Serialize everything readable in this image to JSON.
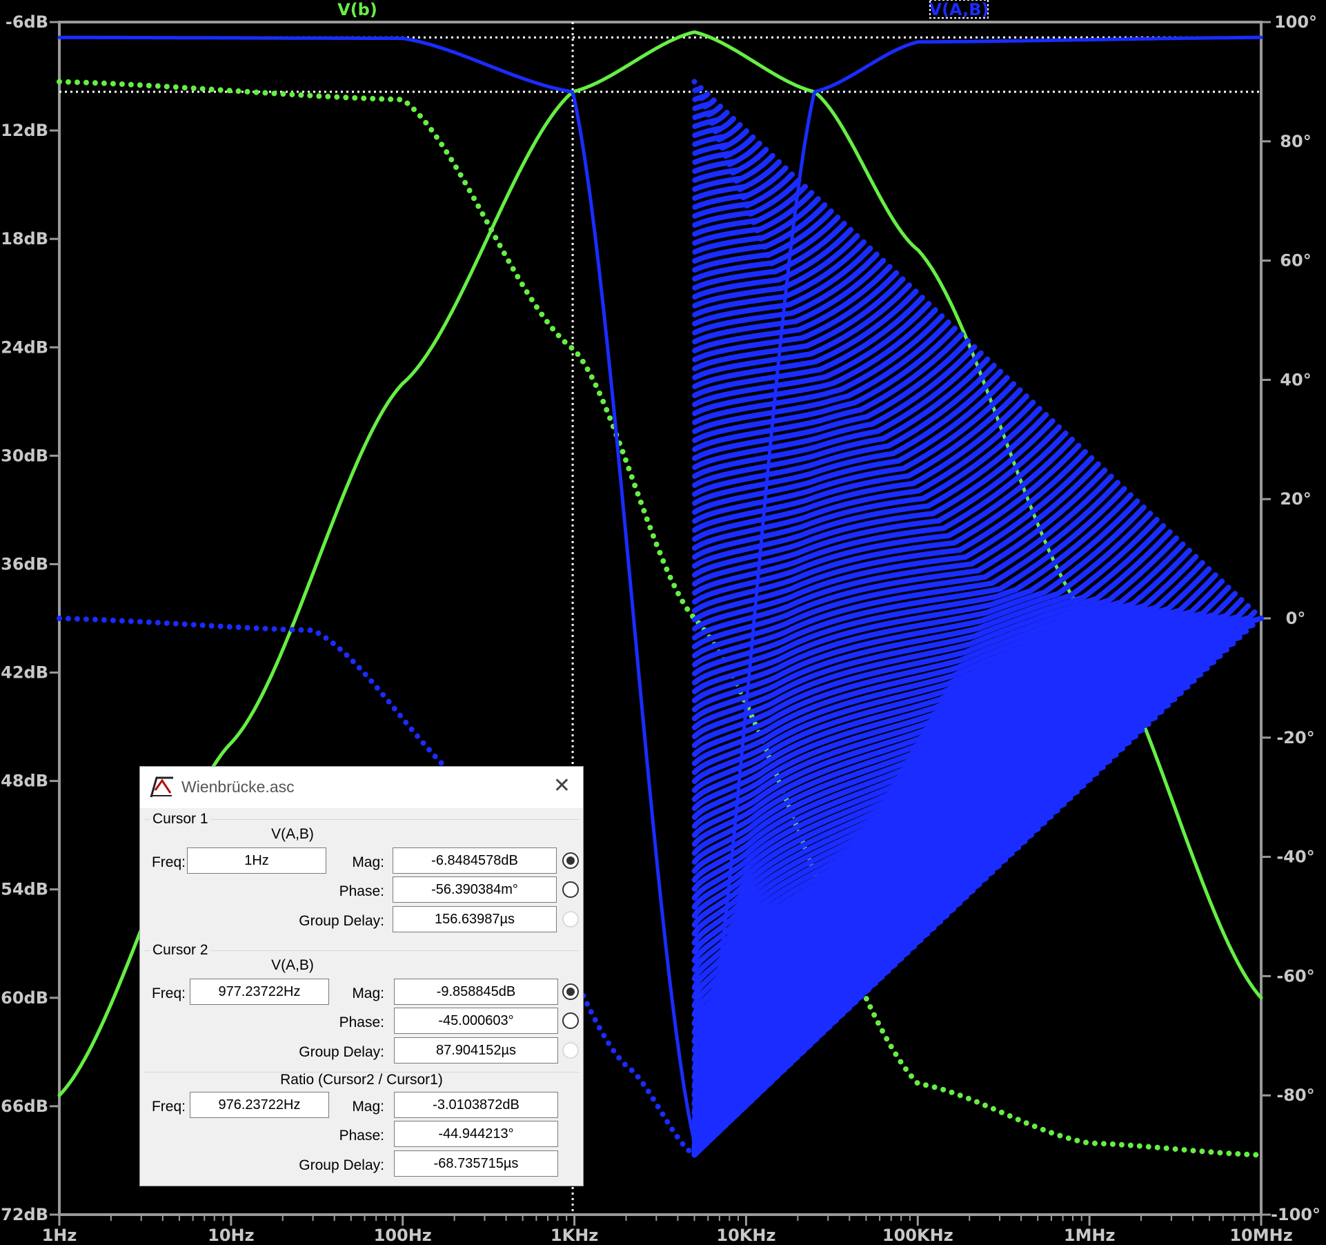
{
  "window_title": "Wienbrücke.asc",
  "legend": [
    {
      "label": "V(b)",
      "color": "#66ee44"
    },
    {
      "label": "V(A,B)",
      "color": "#1a2cff"
    }
  ],
  "chart_data": {
    "type": "line",
    "x_scale": "log",
    "xlim_hz": [
      1,
      10000000
    ],
    "x_ticks": [
      "1Hz",
      "10Hz",
      "100Hz",
      "1KHz",
      "10KHz",
      "100KHz",
      "1MHz",
      "10MHz"
    ],
    "left_axis": {
      "unit": "dB",
      "ylim": [
        -72,
        -6
      ],
      "ticks": [
        "-6dB",
        "-12dB",
        "-18dB",
        "-24dB",
        "-30dB",
        "-36dB",
        "-42dB",
        "-48dB",
        "-54dB",
        "-60dB",
        "-66dB",
        "-72dB"
      ]
    },
    "right_axis": {
      "unit": "degrees",
      "ylim": [
        -100,
        100
      ],
      "ticks": [
        "100°",
        "80°",
        "60°",
        "40°",
        "20°",
        "0°",
        "-20°",
        "-40°",
        "-60°",
        "-80°",
        "-100°"
      ]
    },
    "cursor_lines": {
      "x_hz": 977.23722,
      "y_db": -9.858845
    },
    "series": [
      {
        "name": "V(b)",
        "quantity": "magnitude",
        "axis": "left",
        "style": "solid",
        "color": "#66ee44",
        "points": [
          [
            1,
            -65.4
          ],
          [
            10,
            -45.9
          ],
          [
            100,
            -26
          ],
          [
            977,
            -9.86
          ],
          [
            5000,
            -6.55
          ],
          [
            25000,
            -9.86
          ],
          [
            100000,
            -18.6
          ],
          [
            1000000,
            -39.1
          ],
          [
            10000000,
            -60
          ]
        ]
      },
      {
        "name": "V(b)",
        "quantity": "phase",
        "axis": "right",
        "style": "dotted",
        "color": "#66ee44",
        "points": [
          [
            1,
            90
          ],
          [
            100,
            87
          ],
          [
            1000,
            45
          ],
          [
            5000,
            0
          ],
          [
            100000,
            -78
          ],
          [
            1000000,
            -88
          ],
          [
            10000000,
            -90
          ]
        ]
      },
      {
        "name": "V(A,B)",
        "quantity": "magnitude",
        "axis": "left",
        "style": "solid",
        "color": "#1a2cff",
        "points": [
          [
            1,
            -6.85
          ],
          [
            100,
            -6.9
          ],
          [
            977,
            -9.86
          ],
          [
            5000,
            -68
          ],
          [
            25000,
            -9.86
          ],
          [
            100000,
            -7.1
          ],
          [
            10000000,
            -6.85
          ]
        ]
      },
      {
        "name": "V(A,B)",
        "quantity": "phase",
        "axis": "right",
        "style": "dotted",
        "color": "#1a2cff",
        "points": [
          [
            1,
            0
          ],
          [
            30,
            -2
          ],
          [
            300,
            -30
          ],
          [
            2000,
            -75
          ],
          [
            5000,
            -90
          ],
          [
            5000,
            90
          ],
          [
            30000,
            40
          ],
          [
            300000,
            5
          ],
          [
            10000000,
            0
          ]
        ]
      }
    ]
  },
  "dialog": {
    "cursor1": {
      "group": "Cursor 1",
      "trace": "V(A,B)",
      "freq_label": "Freq:",
      "freq": "1Hz",
      "mag_label": "Mag:",
      "mag": "-6.8484578dB",
      "phase_label": "Phase:",
      "phase": "-56.390384m°",
      "gd_label": "Group Delay:",
      "gd": "156.63987µs"
    },
    "cursor2": {
      "group": "Cursor 2",
      "trace": "V(A,B)",
      "freq_label": "Freq:",
      "freq": "977.23722Hz",
      "mag_label": "Mag:",
      "mag": "-9.858845dB",
      "phase_label": "Phase:",
      "phase": "-45.000603°",
      "gd_label": "Group Delay:",
      "gd": "87.904152µs"
    },
    "ratio": {
      "group": "Ratio (Cursor2 / Cursor1)",
      "freq_label": "Freq:",
      "freq": "976.23722Hz",
      "mag_label": "Mag:",
      "mag": "-3.0103872dB",
      "phase_label": "Phase:",
      "phase": "-44.944213°",
      "gd_label": "Group Delay:",
      "gd": "-68.735715µs"
    }
  }
}
